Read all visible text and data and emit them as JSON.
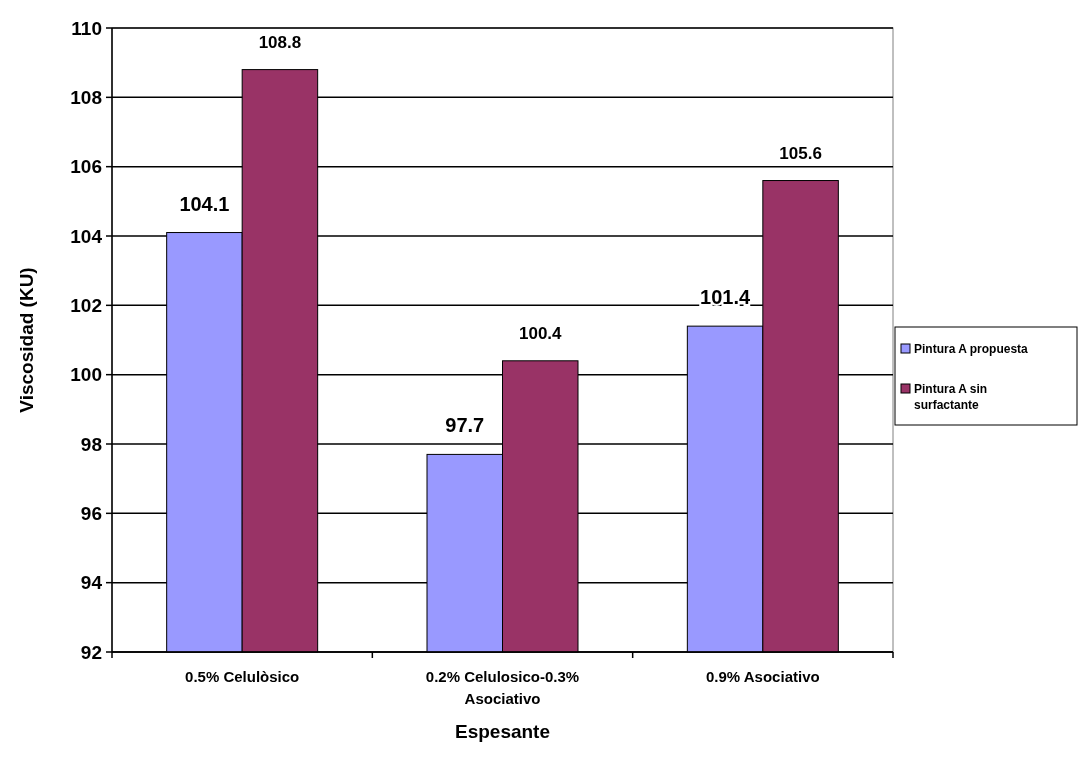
{
  "chart_data": {
    "type": "bar",
    "xlabel": "Espesante",
    "ylabel": "Viscosidad (KU)",
    "categories": [
      "0.5% Celulòsico",
      "0.2% Celulosico-0.3% Asociativo",
      "0.9% Asociativo"
    ],
    "series": [
      {
        "name": "Pintura A propuesta",
        "color": "#9999ff",
        "values": [
          104.1,
          97.7,
          101.4
        ]
      },
      {
        "name": "Pintura A sin surfactante",
        "color": "#993366",
        "values": [
          108.8,
          100.4,
          105.6
        ]
      }
    ],
    "ylim": [
      92,
      110
    ],
    "yticks": [
      92,
      94,
      96,
      98,
      100,
      102,
      104,
      106,
      108,
      110
    ],
    "grid": "y",
    "legend": "right",
    "data_labels": true
  }
}
